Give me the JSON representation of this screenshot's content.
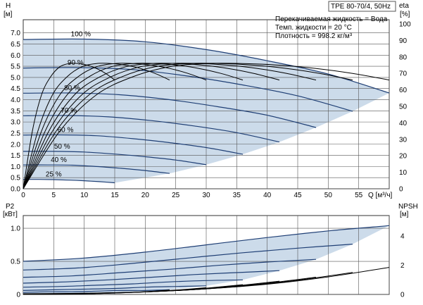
{
  "title": "TPE 80-70/4, 50Hz",
  "info_lines": [
    "Перекачиваемая жидкость = Вода",
    "Темп. жидкости = 20 °C",
    "Плотность = 998.2 кг/м³"
  ],
  "colors": {
    "region_fill": "#ccdbea",
    "speed_curve": "#1f3f75",
    "eff_curve": "#000000",
    "grid": "#555555"
  },
  "chart_data": [
    {
      "type": "line",
      "panel": "H / eta",
      "xlabel": "Q [м³/ч]",
      "ylabel": "H",
      "yunit": "[м]",
      "y2label": "eta",
      "y2unit": "[%]",
      "xlim": [
        0,
        60
      ],
      "ylim": [
        0,
        7.4
      ],
      "y2lim": [
        0,
        100
      ],
      "xticks": [
        "0",
        "5",
        "10",
        "15",
        "20",
        "25",
        "30",
        "35",
        "40",
        "45",
        "50",
        "55"
      ],
      "yticks": [
        "0.0",
        "0.5",
        "1.0",
        "1.5",
        "2.0",
        "2.5",
        "3.0",
        "3.5",
        "4.0",
        "4.5",
        "5.0",
        "5.5",
        "6.0",
        "6.5",
        "7.0"
      ],
      "y2ticks": [
        "0",
        "10",
        "20",
        "30",
        "40",
        "50",
        "60",
        "70",
        "80",
        "90",
        "100"
      ],
      "grid": true,
      "speed_curves": [
        {
          "label": "100 %",
          "x": [
            0,
            10,
            20,
            30,
            40,
            50,
            60
          ],
          "y": [
            6.7,
            6.72,
            6.6,
            6.25,
            5.75,
            5.15,
            4.3
          ]
        },
        {
          "label": "90 %",
          "x": [
            0,
            9,
            18,
            27,
            36,
            45,
            54
          ],
          "y": [
            5.42,
            5.44,
            5.35,
            5.06,
            4.66,
            4.17,
            3.48
          ]
        },
        {
          "label": "80 %",
          "x": [
            0,
            8,
            16,
            24,
            32,
            40,
            48
          ],
          "y": [
            4.29,
            4.3,
            4.22,
            4.0,
            3.68,
            3.3,
            2.75
          ]
        },
        {
          "label": "70 %",
          "x": [
            0,
            7,
            14,
            21,
            28,
            35,
            42
          ],
          "y": [
            3.28,
            3.29,
            3.23,
            3.06,
            2.82,
            2.52,
            2.1
          ]
        },
        {
          "label": "60 %",
          "x": [
            0,
            6,
            12,
            18,
            24,
            30,
            36
          ],
          "y": [
            2.41,
            2.42,
            2.38,
            2.25,
            2.07,
            1.85,
            1.55
          ]
        },
        {
          "label": "50 %",
          "x": [
            0,
            5,
            10,
            15,
            20,
            25,
            30
          ],
          "y": [
            1.68,
            1.68,
            1.65,
            1.56,
            1.44,
            1.29,
            1.08
          ]
        },
        {
          "label": "40 %",
          "x": [
            0,
            4,
            8,
            12,
            16,
            20,
            24
          ],
          "y": [
            1.07,
            1.07,
            1.06,
            1.0,
            0.92,
            0.82,
            0.69
          ]
        },
        {
          "label": "25 %",
          "x": [
            0,
            2.5,
            5,
            7.5,
            10,
            12.5,
            15
          ],
          "y": [
            0.42,
            0.42,
            0.41,
            0.39,
            0.36,
            0.32,
            0.27
          ]
        }
      ],
      "efficiency_curves": [
        {
          "x": [
            0,
            6,
            12,
            18,
            24,
            30,
            36,
            42,
            48,
            54,
            60
          ],
          "eta": [
            0,
            35,
            57,
            68,
            74,
            76,
            76,
            75,
            73,
            70,
            66
          ]
        },
        {
          "x": [
            0,
            5.4,
            10.8,
            16.2,
            21.6,
            27,
            32.4,
            37.8,
            43.2,
            48.6,
            54
          ],
          "eta": [
            0,
            35,
            57,
            68,
            74,
            76,
            76,
            75,
            73,
            70,
            66
          ]
        },
        {
          "x": [
            0,
            4.8,
            9.6,
            14.4,
            19.2,
            24,
            28.8,
            33.6,
            38.4,
            43.2,
            48
          ],
          "eta": [
            0,
            35,
            57,
            68,
            74,
            76,
            76,
            75,
            73,
            70,
            66
          ]
        },
        {
          "x": [
            0,
            4.2,
            8.4,
            12.6,
            16.8,
            21,
            25.2,
            29.4,
            33.6,
            37.8,
            42
          ],
          "eta": [
            0,
            35,
            57,
            68,
            74,
            76,
            76,
            75,
            73,
            70,
            66
          ]
        },
        {
          "x": [
            0,
            3.6,
            7.2,
            10.8,
            14.4,
            18,
            21.6,
            25.2,
            28.8,
            32.4,
            36
          ],
          "eta": [
            0,
            35,
            57,
            68,
            74,
            76,
            76,
            75,
            73,
            70,
            66
          ]
        },
        {
          "x": [
            0,
            3,
            6,
            9,
            12,
            15,
            18,
            21,
            24,
            27,
            30
          ],
          "eta": [
            0,
            35,
            57,
            68,
            74,
            76,
            76,
            75,
            73,
            70,
            66
          ]
        },
        {
          "x": [
            0,
            2.4,
            4.8,
            7.2,
            9.6,
            12,
            14.4,
            16.8,
            19.2,
            21.6,
            24
          ],
          "eta": [
            0,
            35,
            57,
            68,
            74,
            76,
            76,
            75,
            73,
            70,
            66
          ]
        },
        {
          "x": [
            0,
            1.5,
            3,
            4.5,
            6,
            7.5,
            9,
            10.5,
            12,
            13.5,
            15
          ],
          "eta": [
            0,
            35,
            57,
            68,
            74,
            76,
            76,
            75,
            73,
            70,
            66
          ]
        }
      ]
    },
    {
      "type": "line",
      "panel": "P2 / NPSH",
      "ylabel": "P2",
      "yunit": "[кВт]",
      "y2label": "NPSH",
      "y2unit": "[м]",
      "xlim": [
        0,
        60
      ],
      "ylim": [
        0,
        1.15
      ],
      "y2lim": [
        0,
        5.2
      ],
      "yticks": [
        "0",
        "0.5",
        "1.0"
      ],
      "y2ticks": [
        "0",
        "2",
        "4"
      ],
      "grid": true,
      "power_curves": [
        {
          "label": "100 %",
          "x": [
            0,
            10,
            20,
            30,
            40,
            50,
            60
          ],
          "y": [
            0.5,
            0.55,
            0.64,
            0.75,
            0.86,
            0.96,
            1.04
          ]
        },
        {
          "label": "90 %",
          "x": [
            0,
            9,
            18,
            27,
            36,
            45,
            54
          ],
          "y": [
            0.37,
            0.4,
            0.47,
            0.55,
            0.63,
            0.7,
            0.76
          ]
        },
        {
          "label": "80 %",
          "x": [
            0,
            8,
            16,
            24,
            32,
            40,
            48
          ],
          "y": [
            0.26,
            0.28,
            0.33,
            0.38,
            0.44,
            0.49,
            0.53
          ]
        },
        {
          "label": "70 %",
          "x": [
            0,
            7,
            14,
            21,
            28,
            35,
            42
          ],
          "y": [
            0.17,
            0.19,
            0.22,
            0.26,
            0.3,
            0.33,
            0.36
          ]
        },
        {
          "label": "60 %",
          "x": [
            0,
            6,
            12,
            18,
            24,
            30,
            36
          ],
          "y": [
            0.11,
            0.12,
            0.14,
            0.16,
            0.19,
            0.21,
            0.22
          ]
        },
        {
          "label": "50 %",
          "x": [
            0,
            5,
            10,
            15,
            20,
            25,
            30
          ],
          "y": [
            0.06,
            0.07,
            0.08,
            0.09,
            0.11,
            0.12,
            0.13
          ]
        },
        {
          "label": "40 %",
          "x": [
            0,
            4,
            8,
            12,
            16,
            20,
            24
          ],
          "y": [
            0.03,
            0.04,
            0.04,
            0.05,
            0.06,
            0.06,
            0.07
          ]
        },
        {
          "label": "25 %",
          "x": [
            0,
            2.5,
            5,
            7.5,
            10,
            12.5,
            15
          ],
          "y": [
            0.01,
            0.01,
            0.01,
            0.01,
            0.01,
            0.02,
            0.02
          ]
        }
      ],
      "npsh_curves": [
        {
          "x": [
            0,
            10,
            20,
            30,
            40,
            50,
            60
          ],
          "y": [
            0.05,
            0.08,
            0.18,
            0.38,
            0.7,
            1.2,
            1.85
          ]
        },
        {
          "x": [
            0,
            9,
            18,
            27,
            36,
            45,
            54
          ],
          "y": [
            0.04,
            0.07,
            0.15,
            0.31,
            0.57,
            0.97,
            1.5
          ]
        },
        {
          "x": [
            0,
            8,
            16,
            24,
            32,
            40,
            48
          ],
          "y": [
            0.03,
            0.05,
            0.12,
            0.24,
            0.45,
            0.77,
            1.18
          ]
        },
        {
          "x": [
            0,
            7,
            14,
            21,
            28,
            35,
            42
          ],
          "y": [
            0.02,
            0.04,
            0.09,
            0.19,
            0.34,
            0.59,
            0.91
          ]
        },
        {
          "x": [
            0,
            6,
            12,
            18,
            24,
            30,
            36
          ],
          "y": [
            0.02,
            0.03,
            0.07,
            0.14,
            0.25,
            0.43,
            0.67
          ]
        },
        {
          "x": [
            0,
            5,
            10,
            15,
            20,
            25,
            30
          ],
          "y": [
            0.01,
            0.02,
            0.05,
            0.1,
            0.18,
            0.3,
            0.46
          ]
        },
        {
          "x": [
            0,
            4,
            8,
            12,
            16,
            20,
            24
          ],
          "y": [
            0.01,
            0.01,
            0.03,
            0.06,
            0.11,
            0.19,
            0.3
          ]
        },
        {
          "x": [
            0,
            2.5,
            5,
            7.5,
            10,
            12.5,
            15
          ],
          "y": [
            0,
            0,
            0.01,
            0.02,
            0.04,
            0.08,
            0.12
          ]
        }
      ]
    }
  ]
}
